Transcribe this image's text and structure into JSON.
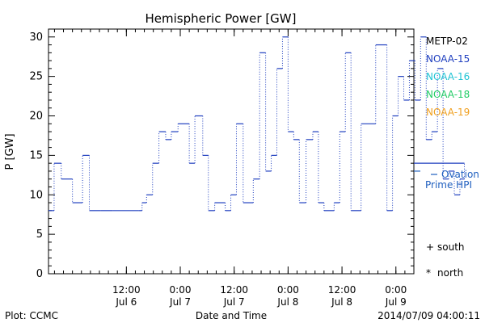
{
  "chart_data": {
    "type": "line",
    "title": "Hemispheric Power [GW]",
    "ylabel": "P [GW]",
    "xlabel": "Date and Time",
    "ylim": [
      0,
      31
    ],
    "yticks": [
      0,
      5,
      10,
      15,
      20,
      25,
      30
    ],
    "x_range_hours": [
      "2014-07-05 18:40",
      "2014-07-09 04:00"
    ],
    "xticks": [
      {
        "time": "2014-07-06 12:00",
        "line1": "12:00",
        "line2": "Jul 6"
      },
      {
        "time": "2014-07-07 00:00",
        "line1": "0:00",
        "line2": "Jul 7"
      },
      {
        "time": "2014-07-07 12:00",
        "line1": "12:00",
        "line2": "Jul 7"
      },
      {
        "time": "2014-07-08 00:00",
        "line1": "0:00",
        "line2": "Jul 8"
      },
      {
        "time": "2014-07-08 12:00",
        "line1": "12:00",
        "line2": "Jul 8"
      },
      {
        "time": "2014-07-09 00:00",
        "line1": "0:00",
        "line2": "Jul 9"
      }
    ],
    "legend": {
      "placement": "right",
      "entries": [
        {
          "name": "METP-02",
          "color": "#000000"
        },
        {
          "name": "NOAA-15",
          "color": "#1f3fbf"
        },
        {
          "name": "NOAA-16",
          "color": "#22c4d4"
        },
        {
          "name": "NOAA-18",
          "color": "#22cc66"
        },
        {
          "name": "NOAA-19",
          "color": "#f0a020"
        }
      ]
    },
    "ovation": {
      "value": 13,
      "label_line1": "Ovation",
      "label_line2": "Prime HPI",
      "color": "#1f5fbf"
    },
    "markers": [
      {
        "symbol": "+",
        "label": "south"
      },
      {
        "symbol": "*",
        "label": "north"
      }
    ],
    "series": [
      {
        "name": "NOAA-15",
        "color": "#1f3fbf",
        "points": [
          [
            "2014-07-05 18:40",
            8
          ],
          [
            "2014-07-05 19:55",
            14
          ],
          [
            "2014-07-05 21:30",
            12
          ],
          [
            "2014-07-06 00:00",
            9
          ],
          [
            "2014-07-06 02:15",
            15
          ],
          [
            "2014-07-06 03:45",
            8
          ],
          [
            "2014-07-06 06:15",
            8
          ],
          [
            "2014-07-06 09:00",
            8
          ],
          [
            "2014-07-06 14:40",
            8
          ],
          [
            "2014-07-06 15:30",
            9
          ],
          [
            "2014-07-06 16:30",
            10
          ],
          [
            "2014-07-06 17:50",
            14
          ],
          [
            "2014-07-06 19:15",
            18
          ],
          [
            "2014-07-06 20:45",
            17
          ],
          [
            "2014-07-06 22:00",
            18
          ],
          [
            "2014-07-06 23:30",
            19
          ],
          [
            "2014-07-07 02:00",
            14
          ],
          [
            "2014-07-07 03:15",
            20
          ],
          [
            "2014-07-07 05:00",
            15
          ],
          [
            "2014-07-07 06:15",
            8
          ],
          [
            "2014-07-07 07:40",
            9
          ],
          [
            "2014-07-07 10:00",
            8
          ],
          [
            "2014-07-07 11:15",
            10
          ],
          [
            "2014-07-07 12:30",
            19
          ],
          [
            "2014-07-07 14:00",
            9
          ],
          [
            "2014-07-07 16:15",
            12
          ],
          [
            "2014-07-07 17:40",
            28
          ],
          [
            "2014-07-07 19:00",
            13
          ],
          [
            "2014-07-07 20:15",
            15
          ],
          [
            "2014-07-07 21:30",
            26
          ],
          [
            "2014-07-07 22:45",
            30
          ],
          [
            "2014-07-08 00:00",
            18
          ],
          [
            "2014-07-08 01:15",
            17
          ],
          [
            "2014-07-08 02:30",
            9
          ],
          [
            "2014-07-08 04:00",
            17
          ],
          [
            "2014-07-08 05:30",
            18
          ],
          [
            "2014-07-08 06:45",
            9
          ],
          [
            "2014-07-08 08:00",
            8
          ],
          [
            "2014-07-08 10:15",
            9
          ],
          [
            "2014-07-08 11:30",
            18
          ],
          [
            "2014-07-08 12:45",
            28
          ],
          [
            "2014-07-08 14:00",
            8
          ],
          [
            "2014-07-08 16:15",
            19
          ],
          [
            "2014-07-08 19:30",
            29
          ],
          [
            "2014-07-08 22:00",
            8
          ],
          [
            "2014-07-08 23:15",
            20
          ],
          [
            "2014-07-09 00:30",
            25
          ],
          [
            "2014-07-09 01:45",
            22
          ],
          [
            "2014-07-09 03:00",
            27
          ],
          [
            "2014-07-09 04:15",
            22
          ],
          [
            "2014-07-09 05:30",
            30
          ],
          [
            "2014-07-09 06:45",
            17
          ],
          [
            "2014-07-09 08:00",
            18
          ],
          [
            "2014-07-09 09:15",
            26
          ],
          [
            "2014-07-09 10:30",
            12
          ],
          [
            "2014-07-09 11:45",
            13
          ],
          [
            "2014-07-09 13:00",
            10
          ],
          [
            "2014-07-09 14:15",
            12
          ],
          [
            "2014-07-09 15:15",
            14
          ]
        ]
      }
    ]
  },
  "footer": {
    "left": "Plot: CCMC",
    "right": "2014/07/09 04:00:11"
  }
}
